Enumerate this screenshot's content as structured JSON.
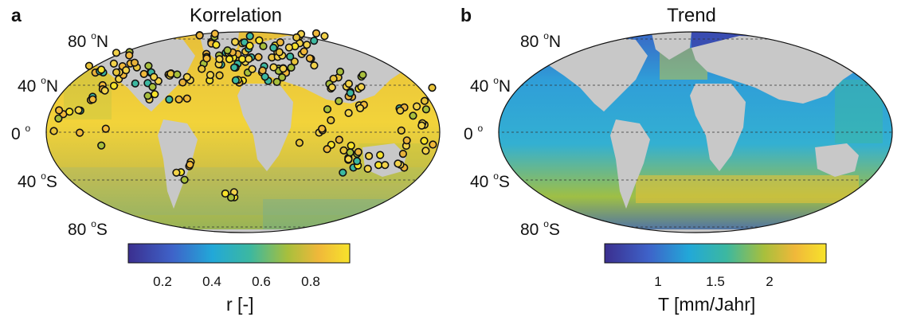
{
  "panels": [
    {
      "letter": "a",
      "title": "Korrelation",
      "lat_labels": {
        "n80": "80",
        "n80_unit": "o",
        "n80_hem": "N",
        "n40": "40",
        "n40_unit": "o",
        "n40_hem": "N",
        "eq": "0",
        "eq_unit": "o",
        "s40": "40",
        "s40_unit": "o",
        "s40_hem": "S",
        "s80": "80",
        "s80_unit": "o",
        "s80_hem": "S"
      },
      "colorbar": {
        "ticks": [
          "0.2",
          "0.4",
          "0.6",
          "0.8"
        ],
        "title": "r [-]"
      }
    },
    {
      "letter": "b",
      "title": "Trend",
      "lat_labels": {
        "n80": "80",
        "n80_unit": "o",
        "n80_hem": "N",
        "n40": "40",
        "n40_unit": "o",
        "n40_hem": "N",
        "eq": "0",
        "eq_unit": "o",
        "s40": "40",
        "s40_unit": "o",
        "s40_hem": "S",
        "s80": "80",
        "s80_unit": "o",
        "s80_hem": "S"
      },
      "colorbar": {
        "ticks": [
          "1",
          "1.5",
          "2"
        ],
        "title": "T [mm/Jahr]"
      }
    }
  ],
  "colors": {
    "ocean_a": "#e9c43a",
    "ocean_b": "#2fa6d6",
    "land": "#c8c8c8",
    "cmap": [
      "#3b2f8f",
      "#3e63c9",
      "#22a8d8",
      "#3cb8a0",
      "#a8bf3c",
      "#f0b83a",
      "#f7e32b"
    ]
  }
}
